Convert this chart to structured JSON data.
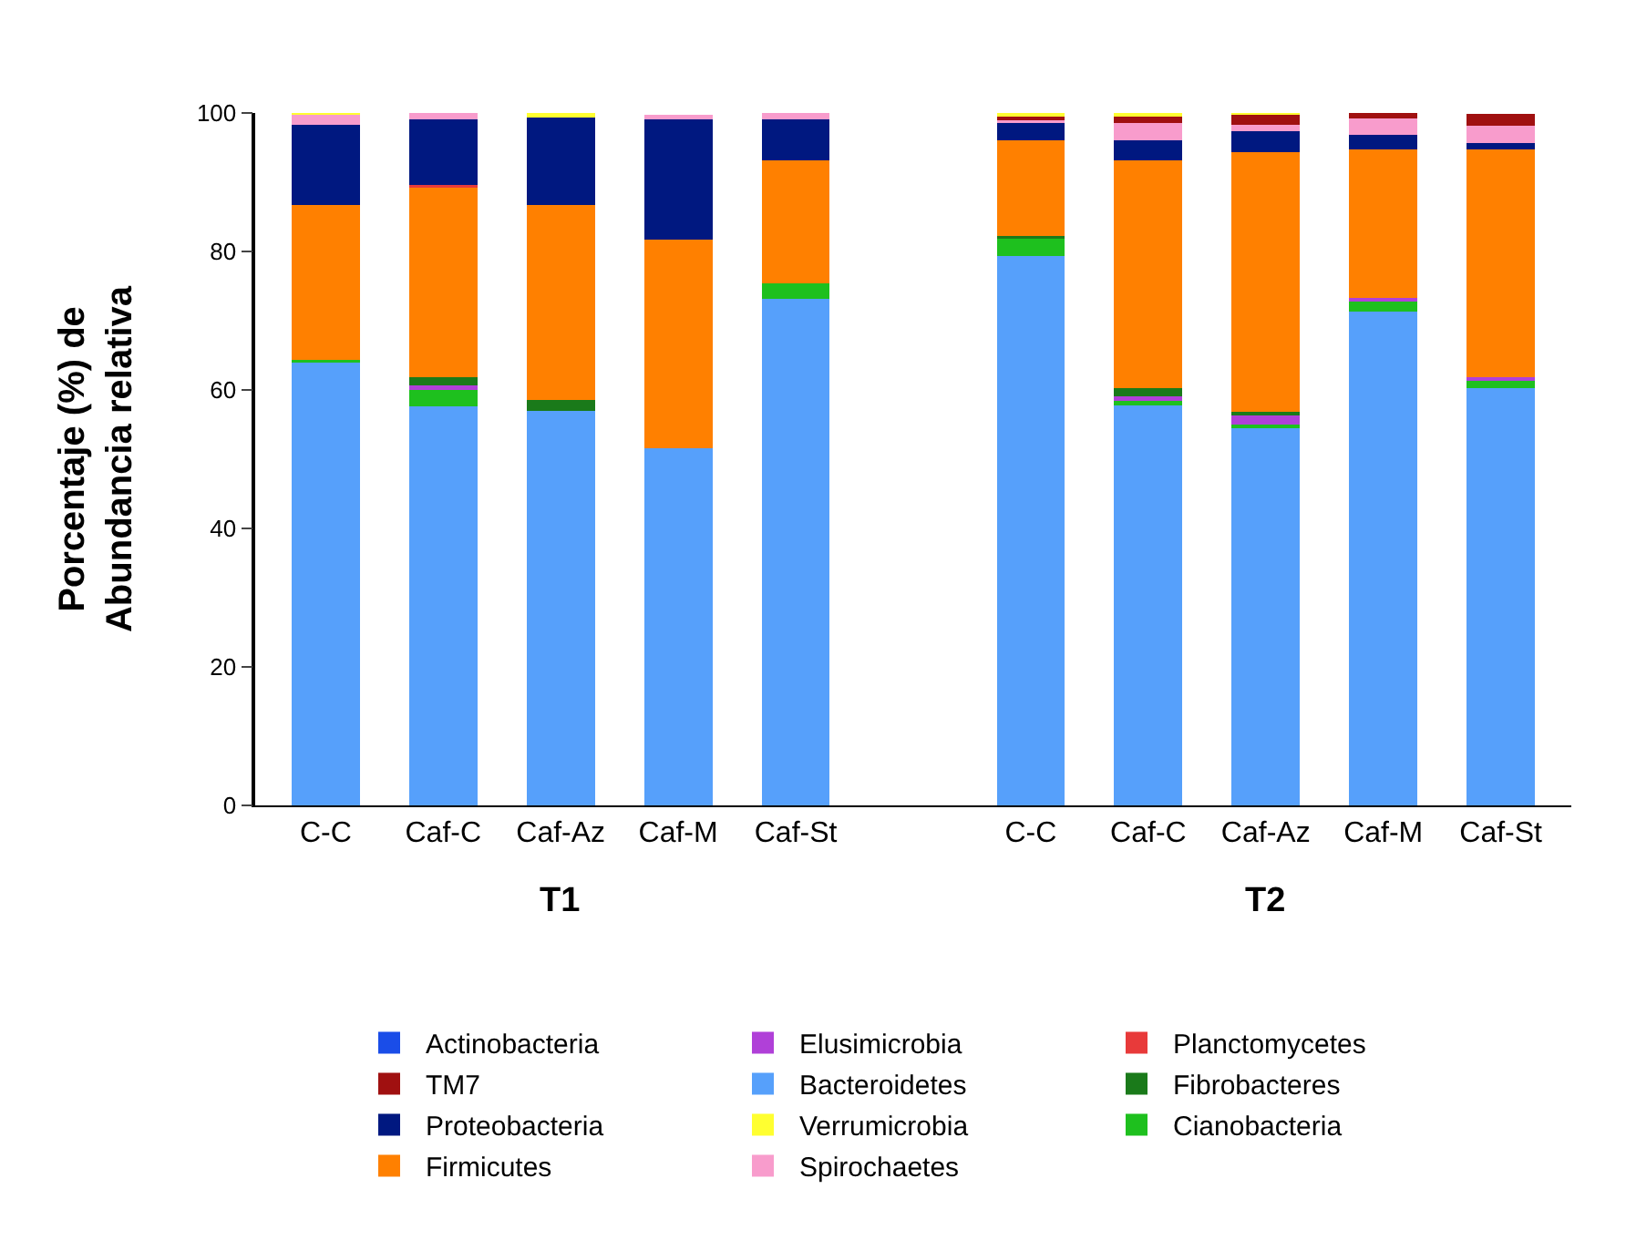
{
  "chart_data": {
    "type": "bar",
    "stacked": true,
    "ylabel": "Porcentaje (%) de\nAbundancia relativa",
    "categories": [
      "C-C",
      "Caf-C",
      "Caf-Az",
      "Caf-M",
      "Caf-St",
      null,
      "C-C",
      "Caf-C",
      "Caf-Az",
      "Caf-M",
      "Caf-St"
    ],
    "annotations": [
      "T1",
      "T2"
    ],
    "ylim": [
      0,
      100
    ],
    "yticks": [
      0,
      20,
      40,
      60,
      80,
      100
    ],
    "grid": false,
    "legend": "bottom",
    "series": [
      {
        "name": "Actinobacteria",
        "color": "#1a4de8",
        "values": [
          0,
          0,
          0,
          0,
          0,
          null,
          0,
          0,
          0,
          0,
          0
        ]
      },
      {
        "name": "Bacteroidetes",
        "color": "#56a0fb",
        "values": [
          64.0,
          57.6,
          57.0,
          51.6,
          73.2,
          null,
          79.4,
          57.8,
          54.7,
          71.3,
          60.3
        ]
      },
      {
        "name": "Cianobacteria",
        "color": "#1ec01e",
        "values": [
          0.3,
          2.5,
          0,
          0,
          2.2,
          null,
          2.5,
          0.6,
          0.3,
          1.4,
          1.2
        ]
      },
      {
        "name": "Elusimicrobia",
        "color": "#b040d8",
        "values": [
          0,
          0.5,
          0,
          null,
          0,
          null,
          0,
          0.7,
          1.5,
          0.6,
          0.3
        ]
      },
      {
        "name": "Fibrobacteres",
        "color": "#1a7a1a",
        "values": [
          0,
          1.3,
          1.5,
          0,
          0,
          null,
          0.3,
          1.1,
          0.3,
          0,
          0
        ]
      },
      {
        "name": "Firmicutes",
        "color": "#ff8000",
        "values": [
          22.4,
          27.4,
          28.2,
          30.1,
          17.7,
          null,
          13.9,
          33.0,
          37.5,
          21.4,
          32.9
        ]
      },
      {
        "name": "Planctomycetes",
        "color": "#e83a3a",
        "values": [
          0,
          0.3,
          0,
          0,
          0,
          null,
          0,
          0,
          0,
          0,
          0
        ]
      },
      {
        "name": "Proteobacteria",
        "color": "#001880",
        "values": [
          11.6,
          9.5,
          12.7,
          17.4,
          6.0,
          null,
          2.4,
          2.8,
          3.1,
          2.1,
          1.0
        ]
      },
      {
        "name": "Spirochaetes",
        "color": "#f89ccc",
        "values": [
          1.5,
          0.9,
          0,
          0.6,
          0.9,
          null,
          0.7,
          2.5,
          0.9,
          2.4,
          2.5
        ]
      },
      {
        "name": "TM7",
        "color": "#a01010",
        "values": [
          0,
          0,
          0,
          0,
          0,
          null,
          0.4,
          1.1,
          1.5,
          0.8,
          1.7
        ]
      },
      {
        "name": "Verrumicrobia",
        "color": "#ffff30",
        "values": [
          0.2,
          0,
          0.6,
          0,
          0,
          null,
          0.4,
          0.4,
          0.2,
          0,
          0
        ]
      }
    ]
  }
}
